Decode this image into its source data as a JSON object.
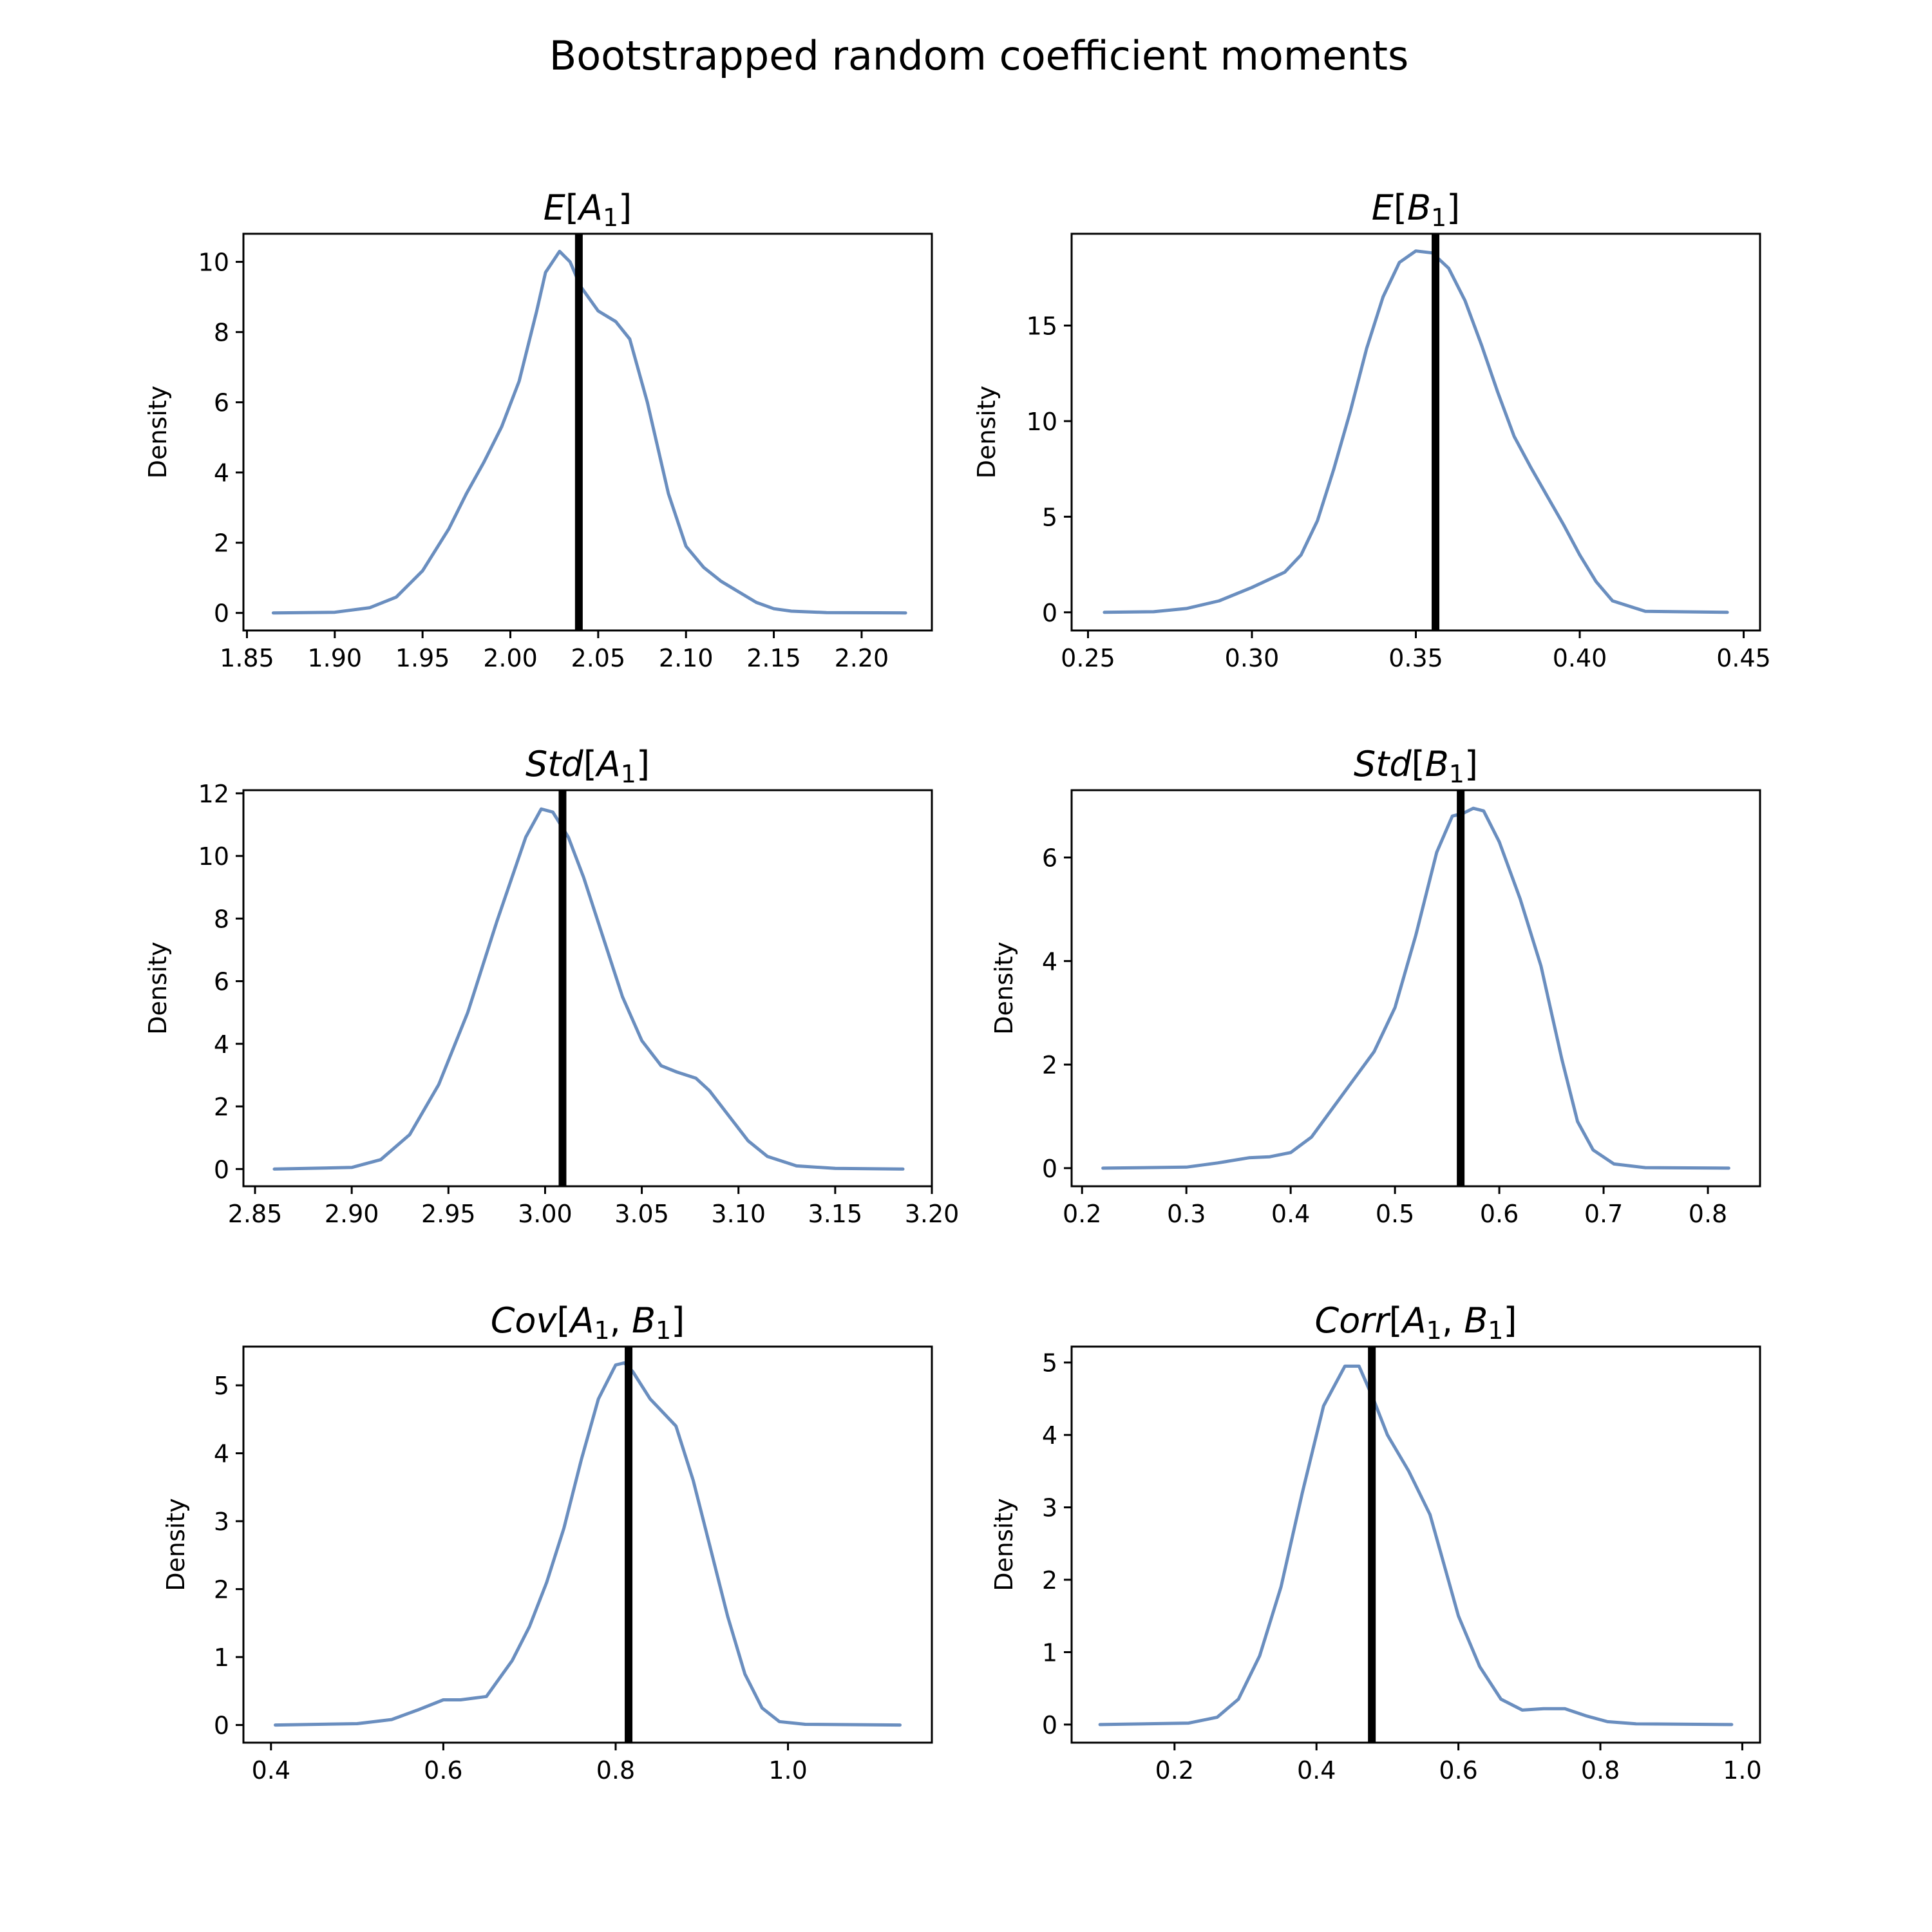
{
  "suptitle": "Bootstrapped random coefficient moments",
  "chart_data": [
    {
      "type": "line",
      "title": "E[A1]",
      "title_parts": [
        [
          "E",
          "it"
        ],
        [
          "[",
          ""
        ],
        [
          "A",
          "it"
        ],
        [
          "1",
          "sub"
        ],
        [
          "]",
          ""
        ]
      ],
      "ylabel": "Density",
      "xlim": [
        1.848,
        2.24
      ],
      "ylim": [
        -0.5,
        10.8
      ],
      "xticks": [
        "1.85",
        "1.90",
        "1.95",
        "2.00",
        "2.05",
        "2.10",
        "2.15",
        "2.20"
      ],
      "xtick_values": [
        1.85,
        1.9,
        1.95,
        2.0,
        2.05,
        2.1,
        2.15,
        2.2
      ],
      "yticks": [
        "0",
        "2",
        "4",
        "6",
        "8",
        "10"
      ],
      "ytick_values": [
        0,
        2,
        4,
        6,
        8,
        10
      ],
      "vline": 2.039,
      "series": [
        {
          "x": [
            1.865,
            1.9,
            1.92,
            1.935,
            1.95,
            1.965,
            1.975,
            1.985,
            1.995,
            2.005,
            2.015,
            2.02,
            2.028,
            2.034,
            2.04,
            2.05,
            2.06,
            2.068,
            2.078,
            2.09,
            2.1,
            2.11,
            2.12,
            2.13,
            2.14,
            2.15,
            2.16,
            2.18,
            2.225
          ],
          "y": [
            0.0,
            0.02,
            0.15,
            0.45,
            1.2,
            2.4,
            3.4,
            4.3,
            5.3,
            6.6,
            8.6,
            9.7,
            10.3,
            10.0,
            9.3,
            8.6,
            8.3,
            7.8,
            6.0,
            3.4,
            1.9,
            1.3,
            0.9,
            0.6,
            0.3,
            0.12,
            0.05,
            0.01,
            0.0
          ]
        }
      ]
    },
    {
      "type": "line",
      "title": "E[B1]",
      "title_parts": [
        [
          "E",
          "it"
        ],
        [
          "[",
          ""
        ],
        [
          "B",
          "it"
        ],
        [
          "1",
          "sub"
        ],
        [
          "]",
          ""
        ]
      ],
      "ylabel": "Density",
      "xlim": [
        0.245,
        0.455
      ],
      "ylim": [
        -0.95,
        19.8
      ],
      "xticks": [
        "0.25",
        "0.30",
        "0.35",
        "0.40",
        "0.45"
      ],
      "xtick_values": [
        0.25,
        0.3,
        0.35,
        0.4,
        0.45
      ],
      "yticks": [
        "0",
        "5",
        "10",
        "15"
      ],
      "ytick_values": [
        0,
        5,
        10,
        15
      ],
      "vline": 0.356,
      "series": [
        {
          "x": [
            0.255,
            0.27,
            0.28,
            0.29,
            0.3,
            0.31,
            0.315,
            0.32,
            0.325,
            0.33,
            0.335,
            0.34,
            0.345,
            0.35,
            0.355,
            0.36,
            0.365,
            0.37,
            0.375,
            0.38,
            0.385,
            0.39,
            0.395,
            0.4,
            0.405,
            0.41,
            0.42,
            0.445
          ],
          "y": [
            0.0,
            0.03,
            0.2,
            0.6,
            1.3,
            2.1,
            3.0,
            4.8,
            7.5,
            10.5,
            13.8,
            16.5,
            18.3,
            18.9,
            18.8,
            18.0,
            16.3,
            14.0,
            11.5,
            9.2,
            7.6,
            6.1,
            4.6,
            3.0,
            1.6,
            0.6,
            0.05,
            0.0
          ]
        }
      ]
    },
    {
      "type": "line",
      "title": "Std[A1]",
      "title_parts": [
        [
          "Std",
          "it"
        ],
        [
          "[",
          ""
        ],
        [
          "A",
          "it"
        ],
        [
          "1",
          "sub"
        ],
        [
          "]",
          ""
        ]
      ],
      "ylabel": "Density",
      "xlim": [
        2.844,
        3.2
      ],
      "ylim": [
        -0.55,
        12.1
      ],
      "xticks": [
        "2.85",
        "2.90",
        "2.95",
        "3.00",
        "3.05",
        "3.10",
        "3.15",
        "3.20"
      ],
      "xtick_values": [
        2.85,
        2.9,
        2.95,
        3.0,
        3.05,
        3.1,
        3.15,
        3.2
      ],
      "yticks": [
        "0",
        "2",
        "4",
        "6",
        "8",
        "10",
        "12"
      ],
      "ytick_values": [
        0,
        2,
        4,
        6,
        8,
        10,
        12
      ],
      "vline": 3.009,
      "series": [
        {
          "x": [
            2.86,
            2.9,
            2.915,
            2.93,
            2.945,
            2.96,
            2.975,
            2.99,
            2.998,
            3.004,
            3.012,
            3.02,
            3.03,
            3.04,
            3.05,
            3.06,
            3.068,
            3.078,
            3.085,
            3.095,
            3.105,
            3.115,
            3.13,
            3.15,
            3.185
          ],
          "y": [
            0.0,
            0.05,
            0.3,
            1.1,
            2.7,
            5.0,
            7.9,
            10.6,
            11.5,
            11.4,
            10.6,
            9.3,
            7.4,
            5.5,
            4.1,
            3.3,
            3.1,
            2.9,
            2.5,
            1.7,
            0.9,
            0.4,
            0.1,
            0.02,
            0.0
          ]
        }
      ]
    },
    {
      "type": "line",
      "title": "Std[B1]",
      "title_parts": [
        [
          "Std",
          "it"
        ],
        [
          "[",
          ""
        ],
        [
          "B",
          "it"
        ],
        [
          "1",
          "sub"
        ],
        [
          "]",
          ""
        ]
      ],
      "ylabel": "Density",
      "xlim": [
        0.19,
        0.85
      ],
      "ylim": [
        -0.35,
        7.3
      ],
      "xticks": [
        "0.2",
        "0.3",
        "0.4",
        "0.5",
        "0.6",
        "0.7",
        "0.8"
      ],
      "xtick_values": [
        0.2,
        0.3,
        0.4,
        0.5,
        0.6,
        0.7,
        0.8
      ],
      "yticks": [
        "0",
        "2",
        "4",
        "6"
      ],
      "ytick_values": [
        0,
        2,
        4,
        6
      ],
      "vline": 0.563,
      "series": [
        {
          "x": [
            0.22,
            0.3,
            0.33,
            0.36,
            0.38,
            0.4,
            0.42,
            0.44,
            0.46,
            0.48,
            0.5,
            0.52,
            0.54,
            0.555,
            0.565,
            0.575,
            0.585,
            0.6,
            0.62,
            0.64,
            0.66,
            0.675,
            0.69,
            0.71,
            0.74,
            0.82
          ],
          "y": [
            0.0,
            0.02,
            0.1,
            0.2,
            0.22,
            0.3,
            0.6,
            1.15,
            1.7,
            2.25,
            3.1,
            4.5,
            6.1,
            6.8,
            6.85,
            6.95,
            6.9,
            6.3,
            5.2,
            3.9,
            2.1,
            0.9,
            0.35,
            0.08,
            0.01,
            0.0
          ]
        }
      ]
    },
    {
      "type": "line",
      "title": "Cov[A1, B1]",
      "title_parts": [
        [
          "Cov",
          "it"
        ],
        [
          "[",
          ""
        ],
        [
          "A",
          "it"
        ],
        [
          "1",
          "sub"
        ],
        [
          ",",
          ""
        ],
        [
          "B",
          "it"
        ],
        [
          "1",
          "sub"
        ],
        [
          "]",
          ""
        ]
      ],
      "ylabel": "Density",
      "xlim": [
        0.368,
        1.167
      ],
      "ylim": [
        -0.26,
        5.57
      ],
      "xticks": [
        "0.4",
        "0.6",
        "0.8",
        "1.0"
      ],
      "xtick_values": [
        0.4,
        0.6,
        0.8,
        1.0
      ],
      "yticks": [
        "0",
        "1",
        "2",
        "3",
        "4",
        "5"
      ],
      "ytick_values": [
        0,
        1,
        2,
        3,
        4,
        5
      ],
      "vline": 0.815,
      "series": [
        {
          "x": [
            0.405,
            0.5,
            0.54,
            0.57,
            0.6,
            0.62,
            0.65,
            0.68,
            0.7,
            0.72,
            0.74,
            0.76,
            0.78,
            0.8,
            0.81,
            0.82,
            0.84,
            0.87,
            0.89,
            0.91,
            0.93,
            0.95,
            0.97,
            0.99,
            1.02,
            1.13
          ],
          "y": [
            0.0,
            0.02,
            0.08,
            0.22,
            0.37,
            0.37,
            0.42,
            0.95,
            1.45,
            2.1,
            2.9,
            3.9,
            4.8,
            5.3,
            5.33,
            5.2,
            4.8,
            4.4,
            3.6,
            2.6,
            1.6,
            0.75,
            0.25,
            0.05,
            0.01,
            0.0
          ]
        }
      ]
    },
    {
      "type": "line",
      "title": "Corr[A1, B1]",
      "title_parts": [
        [
          "Corr",
          "it"
        ],
        [
          "[",
          ""
        ],
        [
          "A",
          "it"
        ],
        [
          "1",
          "sub"
        ],
        [
          ",",
          ""
        ],
        [
          "B",
          "it"
        ],
        [
          "1",
          "sub"
        ],
        [
          "]",
          ""
        ]
      ],
      "ylabel": "Density",
      "xlim": [
        0.055,
        1.025
      ],
      "ylim": [
        -0.25,
        5.22
      ],
      "xticks": [
        "0.2",
        "0.4",
        "0.6",
        "0.8",
        "1.0"
      ],
      "xtick_values": [
        0.2,
        0.4,
        0.6,
        0.8,
        1.0
      ],
      "yticks": [
        "0",
        "1",
        "2",
        "3",
        "4",
        "5"
      ],
      "ytick_values": [
        0,
        1,
        2,
        3,
        4,
        5
      ],
      "vline": 0.478,
      "series": [
        {
          "x": [
            0.095,
            0.22,
            0.26,
            0.29,
            0.32,
            0.35,
            0.38,
            0.41,
            0.44,
            0.46,
            0.48,
            0.5,
            0.53,
            0.56,
            0.58,
            0.6,
            0.63,
            0.66,
            0.69,
            0.72,
            0.75,
            0.78,
            0.81,
            0.85,
            0.985
          ],
          "y": [
            0.0,
            0.02,
            0.1,
            0.35,
            0.95,
            1.9,
            3.2,
            4.4,
            4.95,
            4.95,
            4.5,
            4.0,
            3.5,
            2.9,
            2.2,
            1.5,
            0.8,
            0.35,
            0.2,
            0.22,
            0.22,
            0.12,
            0.04,
            0.01,
            0.0
          ]
        }
      ]
    }
  ]
}
